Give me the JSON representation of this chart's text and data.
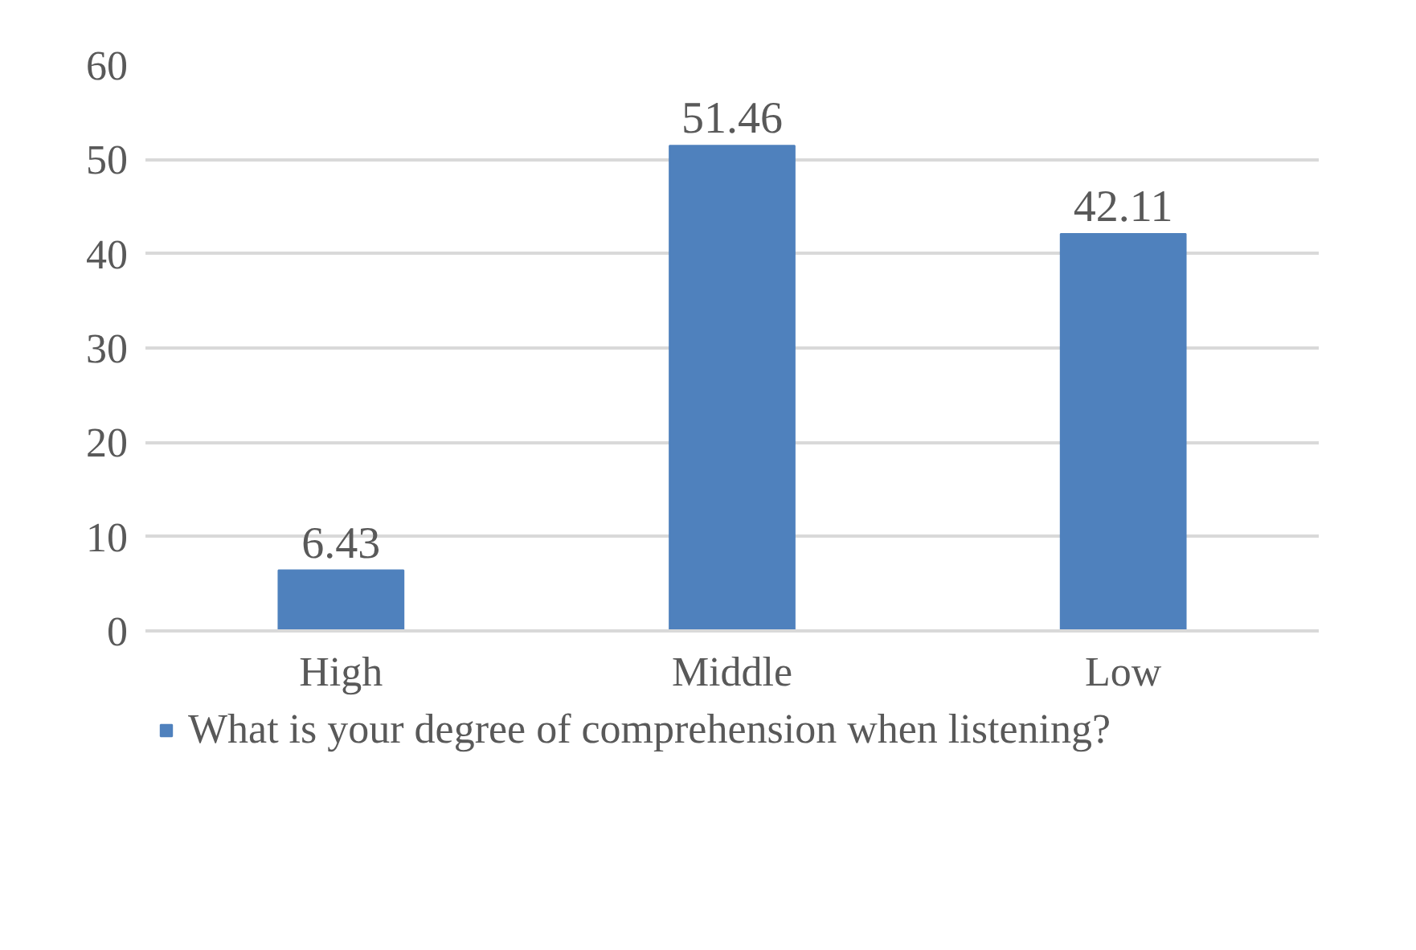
{
  "chart_data": {
    "type": "bar",
    "categories": [
      "High",
      "Middle",
      "Low"
    ],
    "series": [
      {
        "name": "What is your degree of comprehension when listening?",
        "color": "#4f81bd",
        "values": [
          6.43,
          51.46,
          42.11
        ]
      }
    ],
    "ylim": [
      0,
      60
    ],
    "yticks": [
      0,
      10,
      20,
      30,
      40,
      50,
      60
    ],
    "grid": "y",
    "legend": "bottom",
    "data_labels": true
  }
}
